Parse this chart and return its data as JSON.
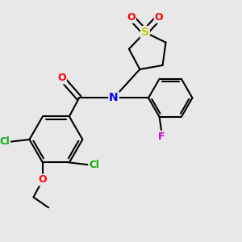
{
  "background_color": "#e8e8e8",
  "bond_color": "#000000",
  "atom_colors": {
    "S": "#cccc00",
    "O": "#ff0000",
    "N": "#0000ff",
    "Cl": "#00aa00",
    "F": "#cc00cc",
    "C": "#000000"
  },
  "figsize": [
    3.0,
    3.0
  ],
  "dpi": 100
}
